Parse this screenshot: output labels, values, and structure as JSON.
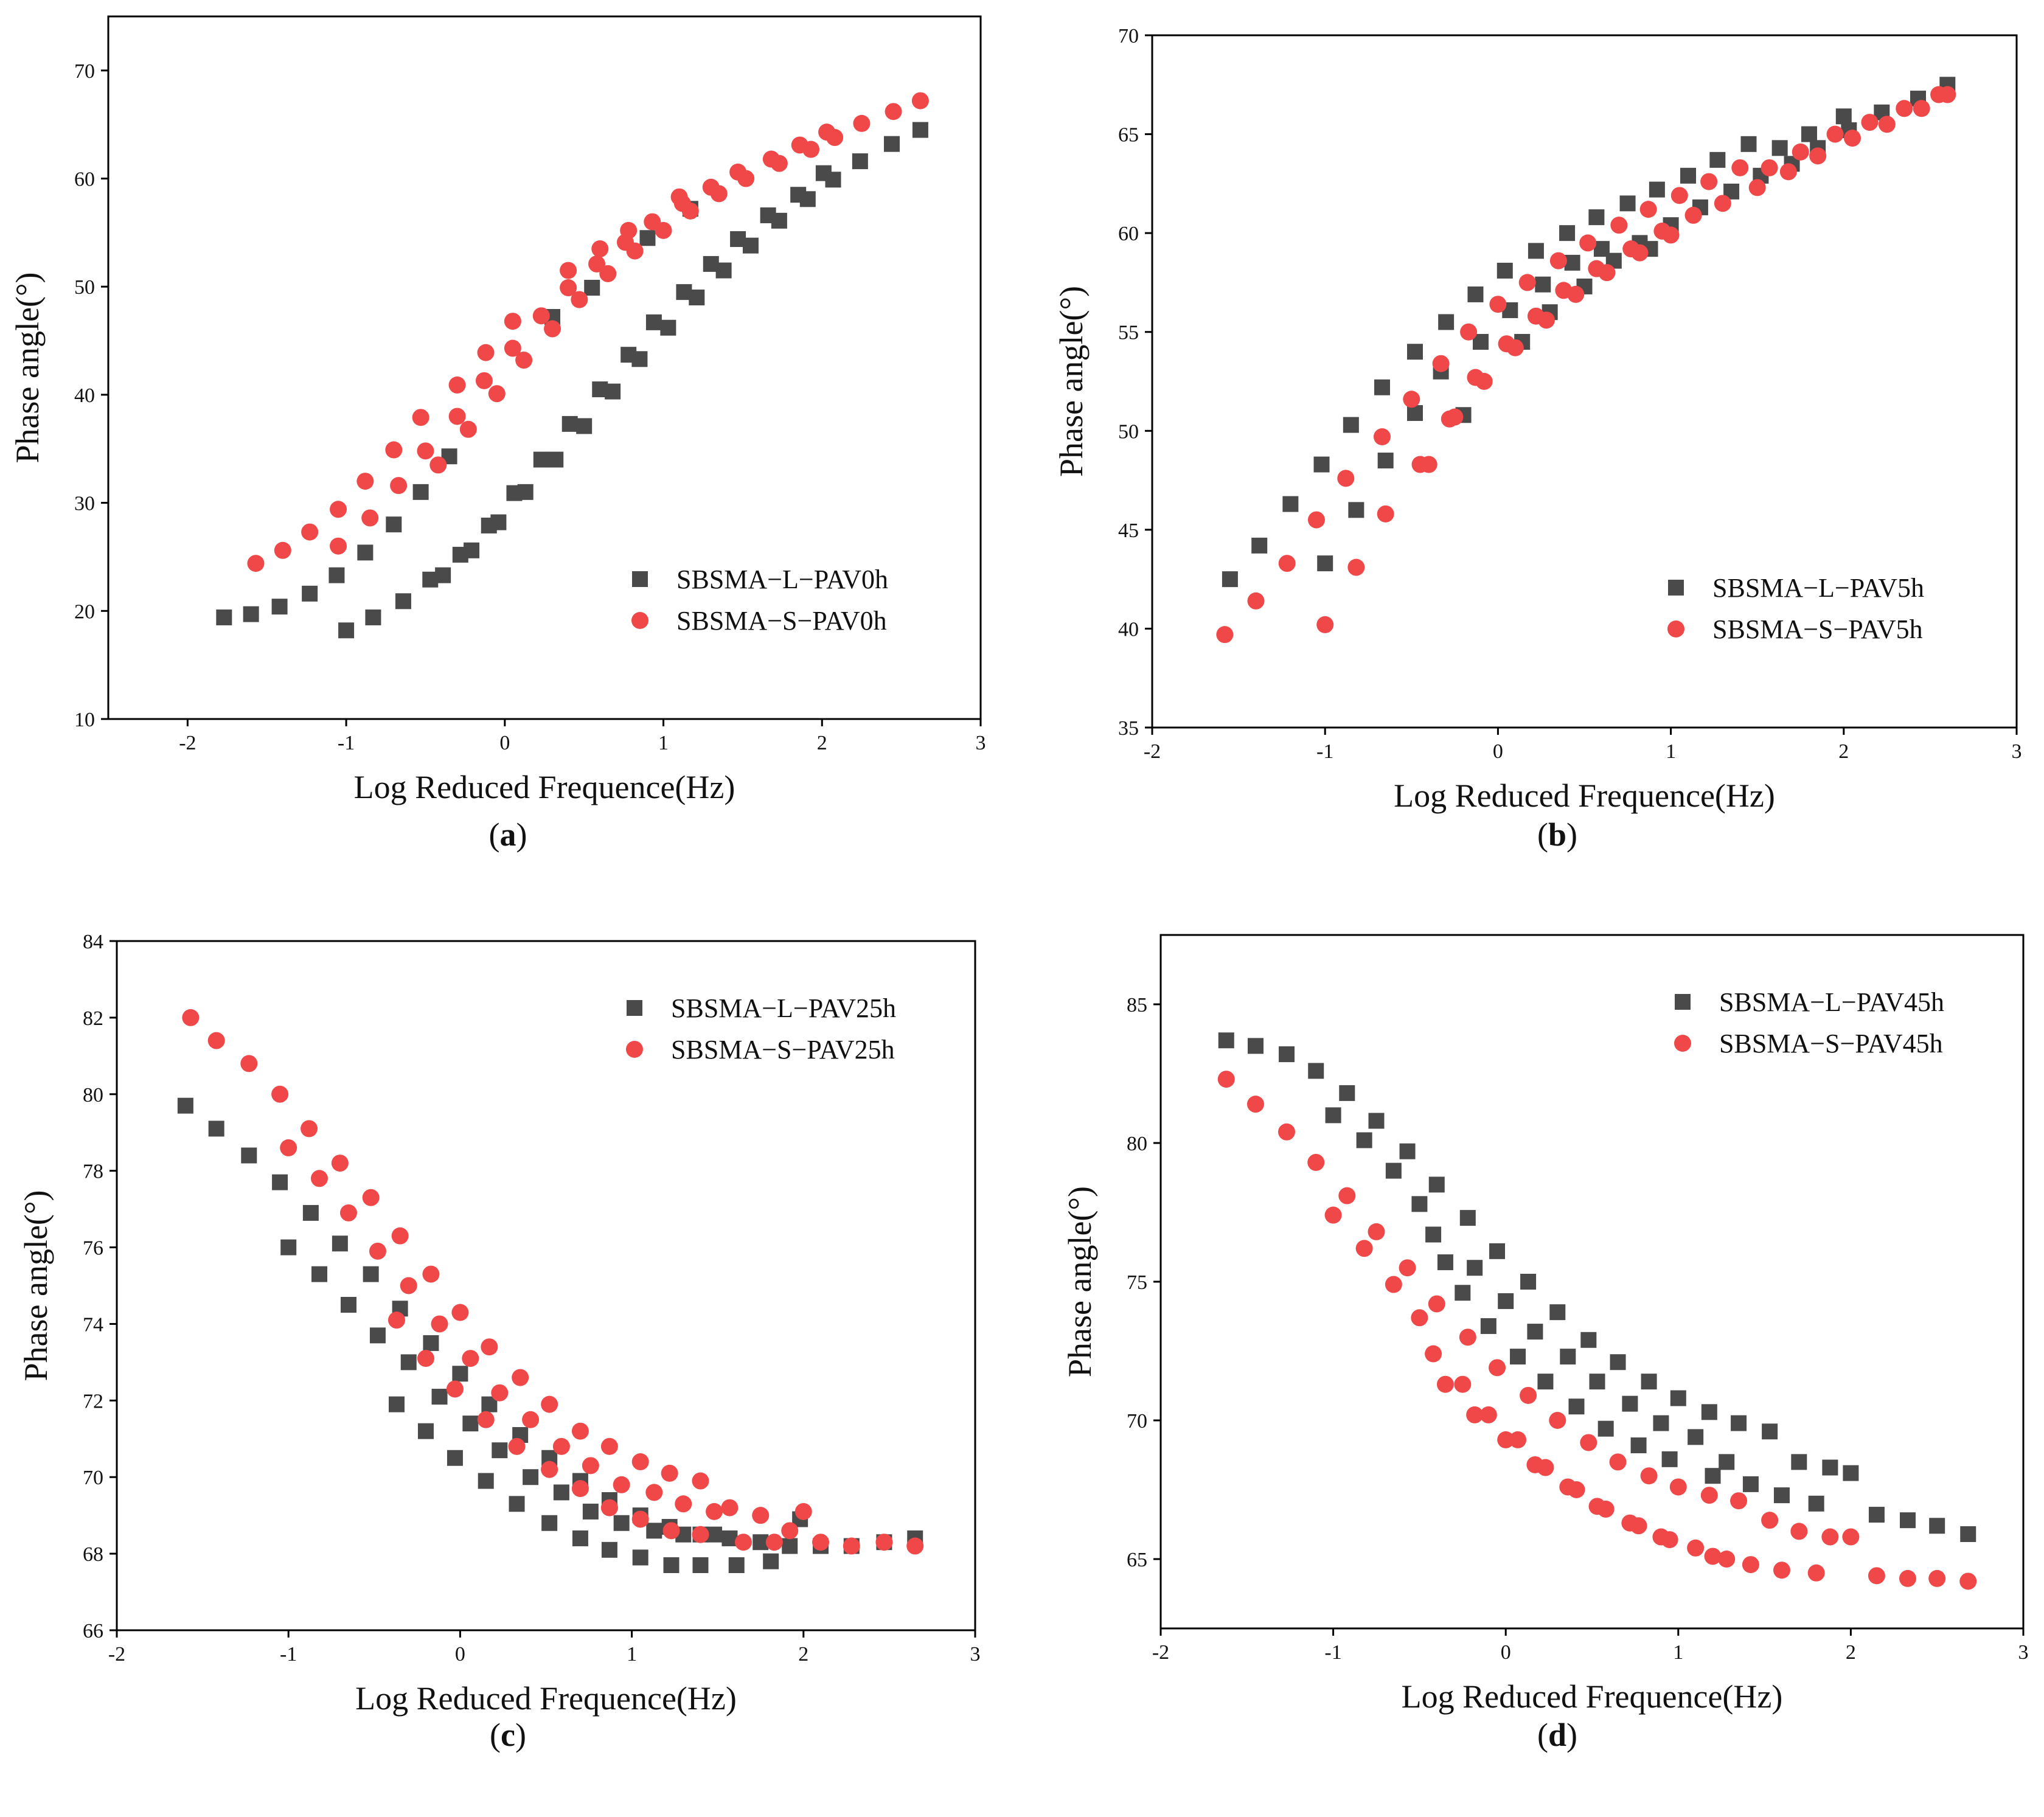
{
  "colors": {
    "series_L": "#4a4a4a",
    "series_S": "#f04848",
    "axis": "#000000"
  },
  "chart_data": [
    {
      "id": "a",
      "panel_label": "a",
      "type": "scatter",
      "xlabel": "Log Reduced Frequence(Hz)",
      "ylabel": "Phase angle(°)",
      "xlim": [
        -2.5,
        3
      ],
      "ylim": [
        10,
        75
      ],
      "xticks": [
        -2,
        -1,
        0,
        1,
        2,
        3
      ],
      "yticks": [
        10,
        20,
        30,
        40,
        50,
        60,
        70
      ],
      "legend_position": "bottom-right",
      "series": [
        {
          "name": "SBSMA−L−PAV0h",
          "marker": "square",
          "x": [
            -1.77,
            -1.6,
            -1.42,
            -1.23,
            -1.06,
            -0.88,
            -0.7,
            -0.53,
            -0.35,
            -1.0,
            -0.83,
            -0.64,
            -0.47,
            -0.39,
            -0.28,
            -0.21,
            -0.1,
            -0.04,
            0.06,
            0.13,
            0.23,
            0.32,
            0.41,
            0.5,
            0.6,
            0.68,
            0.78,
            0.85,
            0.94,
            1.03,
            1.13,
            1.21,
            1.3,
            1.38,
            1.47,
            1.55,
            1.66,
            1.73,
            1.85,
            1.91,
            2.01,
            2.07,
            2.24,
            2.44,
            2.62,
            0.3,
            0.55,
            0.9,
            1.17
          ],
          "y": [
            19.4,
            19.7,
            20.4,
            21.6,
            23.3,
            25.4,
            28.0,
            31.0,
            34.3,
            18.2,
            19.4,
            20.9,
            22.9,
            23.3,
            25.2,
            25.6,
            27.9,
            28.2,
            30.9,
            31.0,
            34.0,
            34.0,
            37.3,
            37.1,
            40.5,
            40.3,
            43.7,
            43.3,
            46.7,
            46.2,
            49.5,
            49.0,
            52.1,
            51.5,
            54.4,
            53.8,
            56.6,
            56.1,
            58.5,
            58.1,
            60.5,
            59.9,
            61.6,
            63.2,
            64.5,
            47.2,
            49.9,
            54.5,
            57.2
          ]
        },
        {
          "name": "SBSMA−S−PAV0h",
          "marker": "circle",
          "x": [
            -1.57,
            -1.4,
            -1.23,
            -1.05,
            -0.88,
            -0.7,
            -0.53,
            -0.3,
            -0.12,
            0.05,
            -1.05,
            -0.85,
            -0.67,
            -0.5,
            -0.42,
            -0.3,
            -0.23,
            -0.13,
            -0.05,
            0.05,
            0.12,
            0.23,
            0.3,
            0.4,
            0.47,
            0.58,
            0.65,
            0.76,
            0.82,
            0.93,
            1.0,
            1.12,
            1.17,
            1.3,
            1.35,
            1.47,
            1.52,
            1.68,
            1.73,
            1.86,
            1.93,
            2.03,
            2.08,
            2.25,
            2.45,
            2.62,
            0.4,
            0.6,
            0.78,
            1.1
          ],
          "y": [
            24.4,
            25.6,
            27.3,
            29.4,
            32.0,
            34.9,
            37.9,
            40.9,
            43.9,
            46.8,
            26.0,
            28.6,
            31.6,
            34.8,
            33.5,
            38.0,
            36.8,
            41.3,
            40.1,
            44.3,
            43.2,
            47.3,
            46.1,
            49.9,
            48.8,
            52.1,
            51.2,
            54.1,
            53.3,
            56.0,
            55.2,
            57.7,
            57.0,
            59.2,
            58.6,
            60.6,
            60.0,
            61.8,
            61.4,
            63.1,
            62.7,
            64.3,
            63.8,
            65.1,
            66.2,
            67.2,
            51.5,
            53.5,
            55.2,
            58.3
          ]
        }
      ]
    },
    {
      "id": "b",
      "panel_label": "b",
      "type": "scatter",
      "xlabel": "Log Reduced Frequence(Hz)",
      "ylabel": "Phase angle(°)",
      "xlim": [
        -2,
        3
      ],
      "ylim": [
        35,
        70
      ],
      "xticks": [
        -2,
        -1,
        0,
        1,
        2,
        3
      ],
      "yticks": [
        35,
        40,
        45,
        50,
        55,
        60,
        65,
        70
      ],
      "legend_position": "bottom-right",
      "series": [
        {
          "name": "SBSMA−L−PAV5h",
          "marker": "square",
          "x": [
            -1.55,
            -1.38,
            -1.2,
            -1.02,
            -0.85,
            -0.67,
            -0.48,
            -0.3,
            -0.13,
            0.04,
            0.22,
            0.4,
            0.57,
            0.75,
            0.92,
            1.1,
            1.27,
            1.45,
            1.63,
            1.8,
            2.0,
            2.22,
            2.43,
            2.6,
            -1.0,
            -0.82,
            -0.65,
            -0.48,
            -0.33,
            -0.2,
            -0.1,
            0.07,
            0.14,
            0.26,
            0.3,
            0.43,
            0.5,
            0.6,
            0.67,
            0.82,
            0.88,
            1.0,
            1.17,
            1.35,
            1.52,
            1.7,
            1.85,
            2.03
          ],
          "y": [
            42.5,
            44.2,
            46.3,
            48.3,
            50.3,
            52.2,
            54.0,
            55.5,
            56.9,
            58.1,
            59.1,
            60.0,
            60.8,
            61.5,
            62.2,
            62.9,
            63.7,
            64.5,
            64.3,
            65.0,
            65.9,
            66.1,
            66.8,
            67.5,
            43.3,
            46.0,
            48.5,
            50.9,
            53.0,
            50.8,
            54.5,
            56.1,
            54.5,
            57.4,
            56.0,
            58.5,
            57.3,
            59.2,
            58.6,
            59.5,
            59.2,
            60.4,
            61.3,
            62.1,
            62.9,
            63.5,
            64.3,
            65.2
          ]
        },
        {
          "name": "SBSMA−S−PAV5h",
          "marker": "circle",
          "x": [
            -1.58,
            -1.4,
            -1.22,
            -1.05,
            -0.88,
            -0.67,
            -0.5,
            -0.33,
            -0.17,
            0.0,
            0.17,
            0.35,
            0.52,
            0.7,
            0.87,
            1.05,
            1.22,
            1.4,
            1.57,
            1.75,
            1.95,
            2.15,
            2.35,
            2.55,
            -1.0,
            -0.82,
            -0.65,
            -0.45,
            -0.4,
            -0.28,
            -0.25,
            -0.13,
            -0.08,
            0.05,
            0.1,
            0.22,
            0.28,
            0.38,
            0.45,
            0.57,
            0.63,
            0.77,
            0.82,
            0.95,
            1.0,
            1.13,
            1.3,
            1.5,
            1.68,
            1.85,
            2.05,
            2.25,
            2.45,
            2.6
          ],
          "y": [
            39.7,
            41.4,
            43.3,
            45.5,
            47.6,
            49.7,
            51.6,
            53.4,
            55.0,
            56.4,
            57.5,
            58.6,
            59.5,
            60.4,
            61.2,
            61.9,
            62.6,
            63.3,
            63.3,
            64.1,
            65.0,
            65.6,
            66.3,
            67.0,
            40.2,
            43.1,
            45.8,
            48.3,
            48.3,
            50.6,
            50.7,
            52.7,
            52.5,
            54.4,
            54.2,
            55.8,
            55.6,
            57.1,
            56.9,
            58.2,
            58.0,
            59.2,
            59.0,
            60.1,
            59.9,
            60.9,
            61.5,
            62.3,
            63.1,
            63.9,
            64.8,
            65.5,
            66.3,
            67.0
          ]
        }
      ]
    },
    {
      "id": "c",
      "panel_label": "c",
      "type": "scatter",
      "xlabel": "Log Reduced Frequence(Hz)",
      "ylabel": "Phase angle(°)",
      "xlim": [
        -2,
        3
      ],
      "ylim": [
        66,
        84
      ],
      "xticks": [
        -2,
        -1,
        0,
        1,
        2,
        3
      ],
      "yticks": [
        66,
        68,
        70,
        72,
        74,
        76,
        78,
        80,
        82,
        84
      ],
      "legend_position": "top-right",
      "series": [
        {
          "name": "SBSMA−L−PAV25h",
          "marker": "square",
          "x": [
            -1.6,
            -1.42,
            -1.23,
            -1.05,
            -0.87,
            -0.7,
            -0.52,
            -0.35,
            -0.17,
            0.0,
            0.17,
            0.35,
            0.52,
            0.7,
            0.87,
            1.05,
            1.22,
            1.4,
            1.57,
            1.75,
            1.92,
            2.1,
            2.28,
            2.47,
            2.65,
            -1.0,
            -0.82,
            -0.65,
            -0.48,
            -0.37,
            -0.3,
            -0.2,
            -0.12,
            -0.03,
            0.06,
            0.15,
            0.23,
            0.33,
            0.41,
            0.52,
            0.59,
            0.7,
            0.76,
            0.87,
            0.94,
            1.05,
            1.13,
            1.23,
            1.3,
            1.4,
            1.48,
            1.61,
            1.81,
            1.98
          ],
          "y": [
            79.7,
            79.1,
            78.4,
            77.7,
            76.9,
            76.1,
            75.3,
            74.4,
            73.5,
            72.7,
            71.9,
            71.1,
            70.5,
            69.9,
            69.4,
            69.0,
            68.7,
            68.5,
            68.4,
            68.3,
            68.2,
            68.2,
            68.2,
            68.3,
            68.4,
            76.0,
            75.3,
            74.5,
            73.7,
            71.9,
            73.0,
            71.2,
            72.1,
            70.5,
            71.4,
            69.9,
            70.7,
            69.3,
            70.0,
            68.8,
            69.6,
            68.4,
            69.1,
            68.1,
            68.8,
            67.9,
            68.6,
            67.7,
            68.5,
            67.7,
            68.5,
            67.7,
            67.8,
            68.9
          ]
        },
        {
          "name": "SBSMA−S−PAV25h",
          "marker": "circle",
          "x": [
            -1.57,
            -1.42,
            -1.23,
            -1.05,
            -0.88,
            -0.7,
            -0.52,
            -0.35,
            -0.17,
            0.0,
            0.17,
            0.35,
            0.52,
            0.7,
            0.87,
            1.05,
            1.22,
            1.4,
            1.57,
            1.75,
            1.92,
            2.1,
            2.28,
            2.47,
            2.65,
            -1.0,
            -0.82,
            -0.65,
            -0.48,
            -0.37,
            -0.3,
            -0.2,
            -0.12,
            -0.03,
            0.06,
            0.15,
            0.23,
            0.33,
            0.41,
            0.52,
            0.59,
            0.7,
            0.76,
            0.87,
            0.94,
            1.05,
            1.13,
            1.23,
            1.3,
            1.4,
            1.48,
            1.65,
            1.83,
            2.0
          ],
          "y": [
            82.0,
            81.4,
            80.8,
            80.0,
            79.1,
            78.2,
            77.3,
            76.3,
            75.3,
            74.3,
            73.4,
            72.6,
            71.9,
            71.2,
            70.8,
            70.4,
            70.1,
            69.9,
            69.2,
            69.0,
            68.6,
            68.3,
            68.2,
            68.3,
            68.2,
            78.6,
            77.8,
            76.9,
            75.9,
            74.1,
            75.0,
            73.1,
            74.0,
            72.3,
            73.1,
            71.5,
            72.2,
            70.8,
            71.5,
            70.2,
            70.8,
            69.7,
            70.3,
            69.2,
            69.8,
            68.9,
            69.6,
            68.6,
            69.3,
            68.5,
            69.1,
            68.3,
            68.3,
            69.1
          ]
        }
      ]
    },
    {
      "id": "d",
      "panel_label": "d",
      "type": "scatter",
      "xlabel": "Log Reduced Frequence(Hz)",
      "ylabel": "Phase angle(°)",
      "xlim": [
        -2,
        3
      ],
      "ylim": [
        62.5,
        87.5
      ],
      "xticks": [
        -2,
        -1,
        0,
        1,
        2,
        3
      ],
      "yticks": [
        65,
        70,
        75,
        80,
        85
      ],
      "legend_position": "top-right",
      "series": [
        {
          "name": "SBSMA−L−PAV45h",
          "marker": "square",
          "x": [
            -1.62,
            -1.45,
            -1.27,
            -1.1,
            -0.92,
            -0.75,
            -0.57,
            -0.4,
            -0.22,
            -0.05,
            0.13,
            0.3,
            0.48,
            0.65,
            0.83,
            1.0,
            1.18,
            1.35,
            1.53,
            1.7,
            1.88,
            2.0,
            2.15,
            2.33,
            2.5,
            2.68,
            -1.0,
            -0.82,
            -0.65,
            -0.5,
            -0.42,
            -0.35,
            -0.25,
            -0.18,
            -0.1,
            0.0,
            0.07,
            0.17,
            0.23,
            0.36,
            0.41,
            0.53,
            0.58,
            0.72,
            0.77,
            0.9,
            0.95,
            1.1,
            1.2,
            1.28,
            1.42,
            1.6,
            1.8
          ],
          "y": [
            83.7,
            83.5,
            83.2,
            82.6,
            81.8,
            80.8,
            79.7,
            78.5,
            77.3,
            76.1,
            75.0,
            73.9,
            72.9,
            72.1,
            71.4,
            70.8,
            70.3,
            69.9,
            69.6,
            68.5,
            68.3,
            68.1,
            66.6,
            66.4,
            66.2,
            65.9,
            81.0,
            80.1,
            79.0,
            77.8,
            76.7,
            75.7,
            74.6,
            75.5,
            73.4,
            74.3,
            72.3,
            73.2,
            71.4,
            72.3,
            70.5,
            71.4,
            69.7,
            70.6,
            69.1,
            69.9,
            68.6,
            69.4,
            68.0,
            68.5,
            67.7,
            67.3,
            67.0
          ],
          "note": ""
        },
        {
          "name": "SBSMA−S−PAV45h",
          "marker": "circle",
          "x": [
            -1.62,
            -1.45,
            -1.27,
            -1.1,
            -0.92,
            -0.75,
            -0.57,
            -0.4,
            -0.22,
            -0.05,
            0.13,
            0.3,
            0.48,
            0.65,
            0.83,
            1.0,
            1.18,
            1.35,
            1.53,
            1.7,
            1.88,
            2.0,
            2.15,
            2.33,
            2.5,
            2.68,
            -1.0,
            -0.82,
            -0.65,
            -0.5,
            -0.42,
            -0.35,
            -0.25,
            -0.18,
            -0.1,
            0.0,
            0.07,
            0.17,
            0.23,
            0.36,
            0.41,
            0.53,
            0.58,
            0.72,
            0.77,
            0.9,
            0.95,
            1.1,
            1.2,
            1.28,
            1.42,
            1.6,
            1.8
          ],
          "y": [
            82.3,
            81.4,
            80.4,
            79.3,
            78.1,
            76.8,
            75.5,
            74.2,
            73.0,
            71.9,
            70.9,
            70.0,
            69.2,
            68.5,
            68.0,
            67.6,
            67.3,
            67.1,
            66.4,
            66.0,
            65.8,
            65.8,
            64.4,
            64.3,
            64.3,
            64.2,
            77.4,
            76.2,
            74.9,
            73.7,
            72.4,
            71.3,
            71.3,
            70.2,
            70.2,
            69.3,
            69.3,
            68.4,
            68.3,
            67.6,
            67.5,
            66.9,
            66.8,
            66.3,
            66.2,
            65.8,
            65.7,
            65.4,
            65.1,
            65.0,
            64.8,
            64.6,
            64.5
          ],
          "note": ""
        }
      ]
    }
  ]
}
